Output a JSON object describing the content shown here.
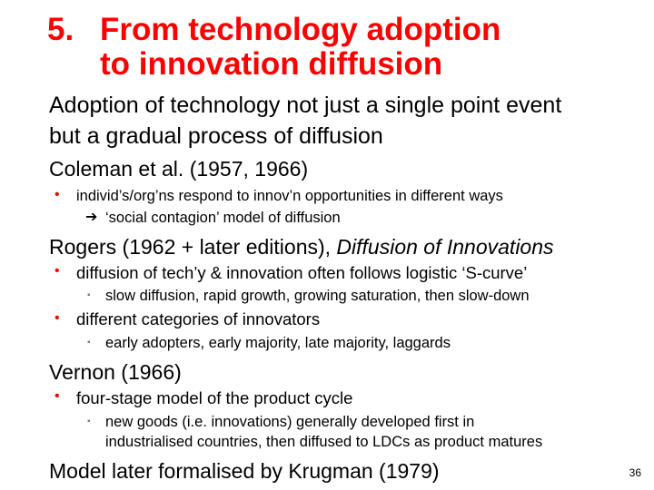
{
  "title": {
    "number": "5.",
    "line1": "From technology adoption",
    "line2": "to innovation diffusion"
  },
  "body": {
    "intro_line1": "Adoption of technology not just a single point event",
    "intro_line2": "but a gradual process of diffusion",
    "coleman_heading": "Coleman et al. (1957, 1966)",
    "coleman_bullet": "individ’s/org’ns respond to innov’n opportunities in different ways",
    "coleman_sub": "‘social contagion’ model of diffusion",
    "rogers_heading_prefix": "Rogers (1962 + later editions), ",
    "rogers_heading_italic": "Diffusion of Innovations",
    "rogers_bullet1": "diffusion of tech’y & innovation often follows logistic ‘S-curve’",
    "rogers_sub1": "slow diffusion, rapid growth, growing saturation, then slow-down",
    "rogers_bullet2": "different categories of innovators",
    "rogers_sub2": "early adopters, early majority, late majority, laggards",
    "vernon_heading": "Vernon (1966)",
    "vernon_bullet": "four-stage model of the product cycle",
    "vernon_sub_line1": "new goods (i.e. innovations) generally developed first in",
    "vernon_sub_line2": "industrialised countries, then diffused to LDCs as product matures",
    "krugman_line": "Model later formalised by Krugman (1979)"
  },
  "bullets": {
    "dot": "•",
    "square": "▪",
    "arrow": "➔"
  },
  "page_number": "36",
  "colors": {
    "title": "#ff0000",
    "bullet": "#ff0000",
    "sub_bullet": "#7f7f7f",
    "text": "#000000"
  }
}
